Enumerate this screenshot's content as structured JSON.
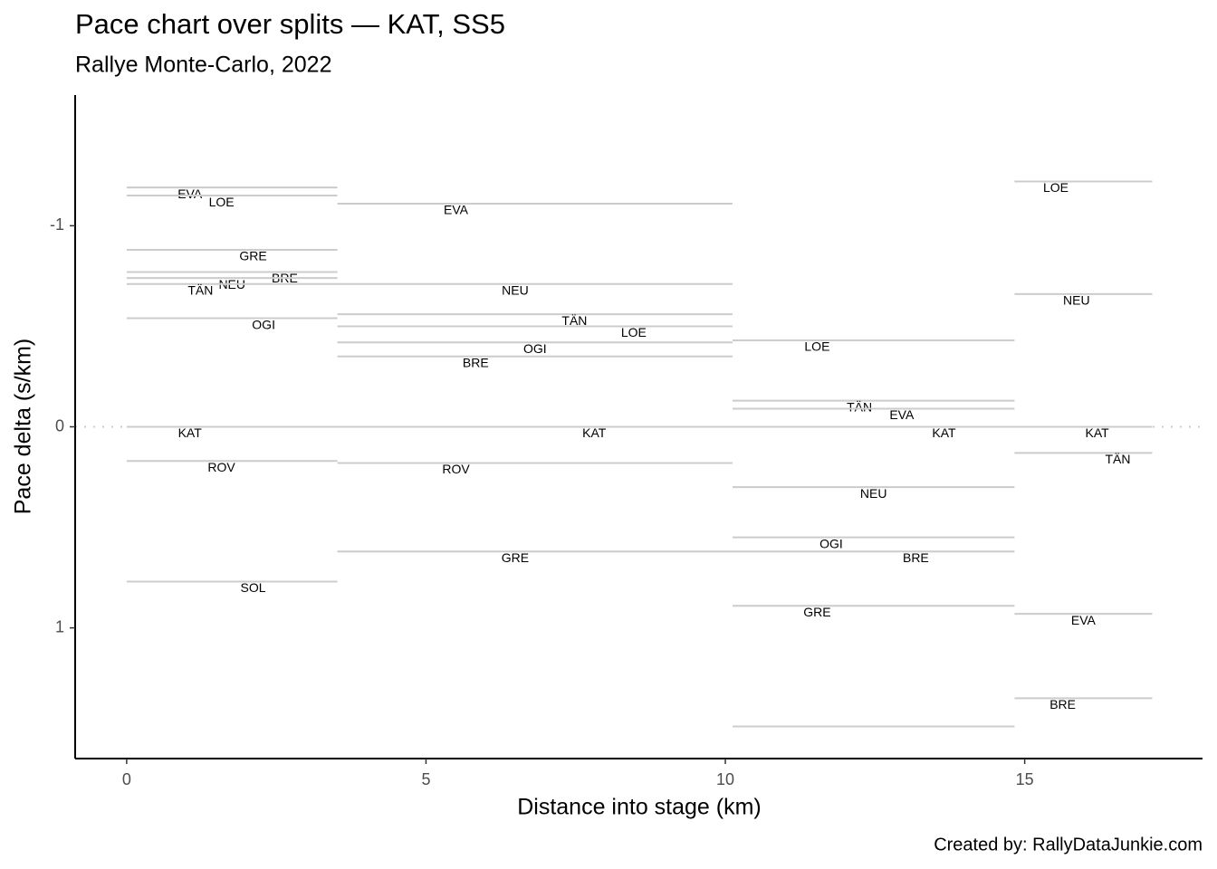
{
  "chart_data": {
    "type": "segment",
    "title": "Pace chart over splits — KAT, SS5",
    "subtitle": "Rallye Monte-Carlo, 2022",
    "x_label": "Distance into stage (km)",
    "y_label": "Pace delta (s/km)",
    "caption": "Created by: RallyDataJunkie.com",
    "xlim": [
      -0.86,
      17.97
    ],
    "xticks": [
      0,
      5,
      10,
      15
    ],
    "ylim": [
      1.65,
      -1.65
    ],
    "yticks": [
      -1,
      0,
      1
    ],
    "y_reversed": true,
    "reference_line": 0,
    "color": "#cccccc",
    "segments": [
      {
        "label": "EVA",
        "x0": 0,
        "x1": 3.52,
        "value": -1.19
      },
      {
        "label": "LOE",
        "x0": 0,
        "x1": 3.52,
        "value": -1.15
      },
      {
        "label": "GRE",
        "x0": 0,
        "x1": 3.52,
        "value": -0.88
      },
      {
        "label": "BRE",
        "x0": 0,
        "x1": 3.52,
        "value": -0.77
      },
      {
        "label": "NEU",
        "x0": 0,
        "x1": 3.52,
        "value": -0.74
      },
      {
        "label": "TÄN",
        "x0": 0,
        "x1": 3.52,
        "value": -0.71
      },
      {
        "label": "OGI",
        "x0": 0,
        "x1": 3.52,
        "value": -0.54
      },
      {
        "label": "KAT",
        "x0": 0,
        "x1": 3.52,
        "value": 0
      },
      {
        "label": "ROV",
        "x0": 0,
        "x1": 3.52,
        "value": 0.17
      },
      {
        "label": "SOL",
        "x0": 0,
        "x1": 3.52,
        "value": 0.77
      },
      {
        "label": "EVA",
        "x0": 3.52,
        "x1": 10.12,
        "value": -1.11
      },
      {
        "label": "NEU",
        "x0": 3.52,
        "x1": 10.12,
        "value": -0.71
      },
      {
        "label": "TÄN",
        "x0": 3.52,
        "x1": 10.12,
        "value": -0.56
      },
      {
        "label": "LOE",
        "x0": 3.52,
        "x1": 10.12,
        "value": -0.5
      },
      {
        "label": "OGI",
        "x0": 3.52,
        "x1": 10.12,
        "value": -0.42
      },
      {
        "label": "BRE",
        "x0": 3.52,
        "x1": 10.12,
        "value": -0.35
      },
      {
        "label": "KAT",
        "x0": 3.52,
        "x1": 10.12,
        "value": 0
      },
      {
        "label": "ROV",
        "x0": 3.52,
        "x1": 10.12,
        "value": 0.18
      },
      {
        "label": "GRE",
        "x0": 3.52,
        "x1": 10.12,
        "value": 0.62
      },
      {
        "label": "LOE",
        "x0": 10.12,
        "x1": 14.83,
        "value": -0.43
      },
      {
        "label": "TÄN",
        "x0": 10.12,
        "x1": 14.83,
        "value": -0.13
      },
      {
        "label": "EVA",
        "x0": 10.12,
        "x1": 14.83,
        "value": -0.09
      },
      {
        "label": "KAT",
        "x0": 10.12,
        "x1": 14.83,
        "value": 0
      },
      {
        "label": "NEU",
        "x0": 10.12,
        "x1": 14.83,
        "value": 0.3
      },
      {
        "label": "OGI",
        "x0": 10.12,
        "x1": 14.83,
        "value": 0.55
      },
      {
        "label": "BRE",
        "x0": 10.12,
        "x1": 14.83,
        "value": 0.62
      },
      {
        "label": "GRE",
        "x0": 10.12,
        "x1": 14.83,
        "value": 0.89
      },
      {
        "label": null,
        "x0": 10.12,
        "x1": 14.83,
        "value": 1.49
      },
      {
        "label": "LOE",
        "x0": 14.83,
        "x1": 17.13,
        "value": -1.22
      },
      {
        "label": "NEU",
        "x0": 14.83,
        "x1": 17.13,
        "value": -0.66
      },
      {
        "label": "KAT",
        "x0": 14.83,
        "x1": 17.13,
        "value": 0
      },
      {
        "label": "TÄN",
        "x0": 14.83,
        "x1": 17.13,
        "value": 0.13
      },
      {
        "label": "EVA",
        "x0": 14.83,
        "x1": 17.13,
        "value": 0.93
      },
      {
        "label": "BRE",
        "x0": 14.83,
        "x1": 17.13,
        "value": 1.35
      }
    ]
  }
}
